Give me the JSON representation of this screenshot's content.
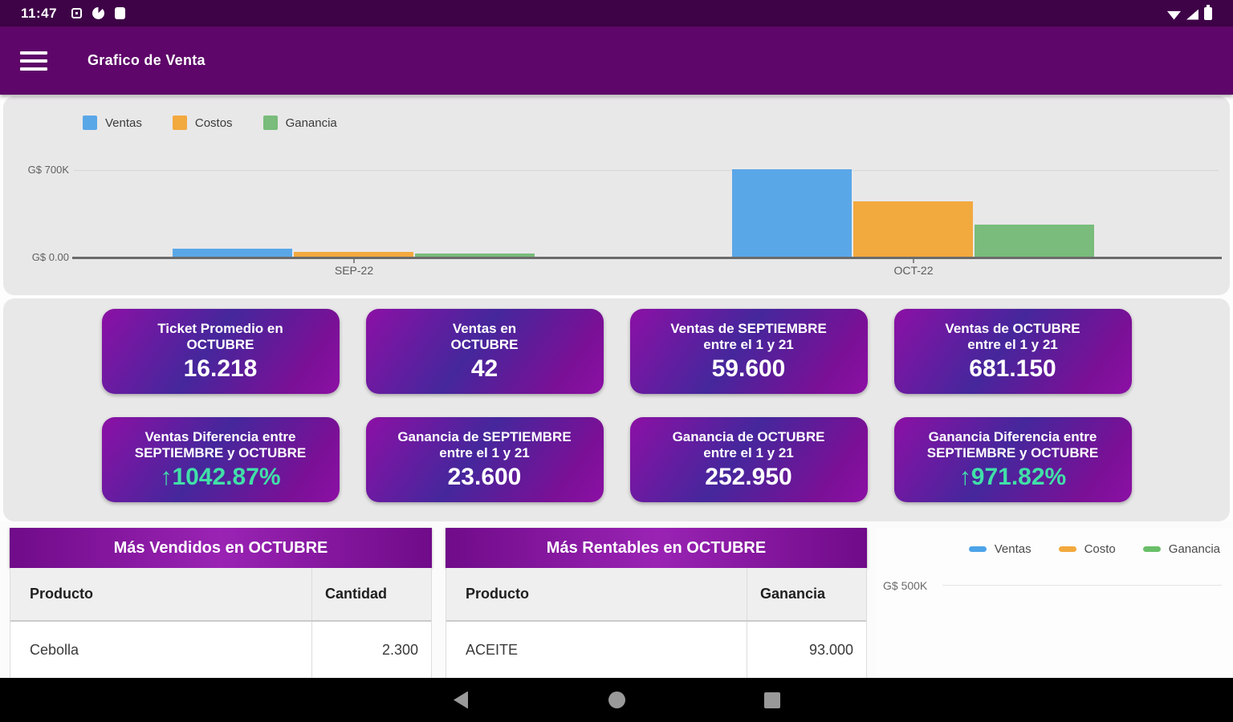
{
  "status_bar": {
    "time": "11:47"
  },
  "app_bar": {
    "title": "Grafico de Venta"
  },
  "colors": {
    "status_bar": "#3e0247",
    "app_bar": "#5e0669",
    "panel_bg": "#e9e8e9",
    "card_gradient_start": "#8c10a5",
    "card_gradient_mid": "#45279c",
    "accent_green": "#41e0a8",
    "table_header_purple": "#7d12a0"
  },
  "chart_data": [
    {
      "type": "bar",
      "categories": [
        "SEP-22",
        "OCT-22"
      ],
      "series": [
        {
          "name": "Ventas",
          "color": "#5aa7e8",
          "values": [
            59600,
            681150
          ]
        },
        {
          "name": "Costos",
          "color": "#f2a93e",
          "values": [
            36000,
            428200
          ]
        },
        {
          "name": "Ganancia",
          "color": "#79bc7b",
          "values": [
            23600,
            252950
          ]
        }
      ],
      "ylim": [
        0,
        700000
      ],
      "ytick_labels": {
        "max": "G$ 700K",
        "zero": "G$ 0.00"
      },
      "currency": "G$",
      "legend_position": "top-left",
      "grid": "single horizontal gridline at 700K"
    },
    {
      "type": "line",
      "series": [
        {
          "name": "Ventas",
          "color": "#4da3e8"
        },
        {
          "name": "Costo",
          "color": "#f2a93e"
        },
        {
          "name": "Ganancia",
          "color": "#6abf69"
        }
      ],
      "ytick_labels": {
        "visible": "G$ 500K"
      },
      "legend_position": "top-right"
    }
  ],
  "stat_cards": {
    "row1": [
      {
        "title": "Ticket Promedio en\nOCTUBRE",
        "value": "16.218"
      },
      {
        "title": "Ventas en\nOCTUBRE",
        "value": "42"
      },
      {
        "title": "Ventas de SEPTIEMBRE\nentre el 1 y 21",
        "value": "59.600"
      },
      {
        "title": "Ventas de OCTUBRE\nentre el 1 y 21",
        "value": "681.150"
      }
    ],
    "row2": [
      {
        "title": "Ventas Diferencia entre\nSEPTIEMBRE y OCTUBRE",
        "arrow": "↑",
        "value": "1042.87%",
        "highlight": true
      },
      {
        "title": "Ganancia de SEPTIEMBRE\nentre el 1 y 21",
        "value": "23.600"
      },
      {
        "title": "Ganancia de OCTUBRE\nentre el 1 y 21",
        "value": "252.950"
      },
      {
        "title": "Ganancia Diferencia entre\nSEPTIEMBRE y OCTUBRE",
        "arrow": "↑",
        "value": "971.82%",
        "highlight": true
      }
    ]
  },
  "tables": {
    "left": {
      "title": "Más Vendidos en OCTUBRE",
      "columns": [
        "Producto",
        "Cantidad"
      ],
      "rows": [
        [
          "Cebolla",
          "2.300"
        ]
      ]
    },
    "right": {
      "title": "Más Rentables en OCTUBRE",
      "columns": [
        "Producto",
        "Ganancia"
      ],
      "rows": [
        [
          "ACEITE",
          "93.000"
        ]
      ]
    }
  },
  "nav_bar": {
    "icons": [
      "back",
      "home",
      "recents"
    ]
  }
}
